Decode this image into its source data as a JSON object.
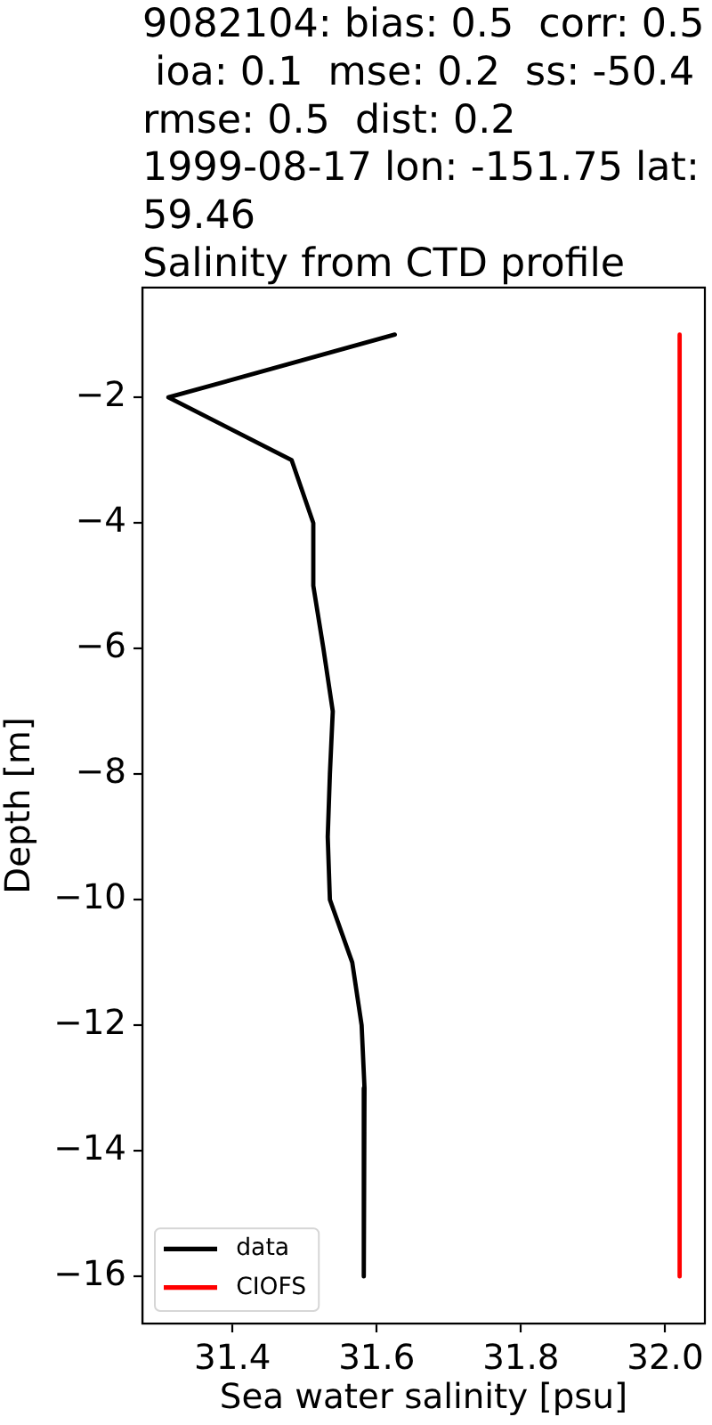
{
  "chart_data": {
    "type": "line",
    "title": "9082104: bias: 0.5  corr: 0.5\n ioa: 0.1  mse: 0.2  ss: -50.4\nrmse: 0.5  dist: 0.2\n1999-08-17 lon: -151.75 lat:\n59.46\nSalinity from CTD profile",
    "xlabel": "Sea water salinity [psu]",
    "ylabel": "Depth [m]",
    "series": [
      {
        "name": "data",
        "color": "#000000",
        "x": [
          31.625,
          31.311,
          31.482,
          31.512,
          31.512,
          31.526,
          31.539,
          31.535,
          31.532,
          31.535,
          31.566,
          31.579,
          31.583,
          31.582
        ],
        "values": [
          -1,
          -2,
          -3,
          -4,
          -5,
          -6,
          -7,
          -8,
          -9,
          -10,
          -11,
          -12,
          -13,
          -16
        ]
      },
      {
        "name": "CIOFS",
        "color": "#ff0000",
        "x": [
          32.02,
          32.02
        ],
        "values": [
          -1,
          -16
        ]
      }
    ],
    "xlim": [
      31.275,
      32.055
    ],
    "ylim": [
      -16.75,
      -0.25
    ],
    "xticks": [
      31.4,
      31.6,
      31.8,
      {
        "value": 32,
        "label": "32.0"
      }
    ],
    "yticks": [
      {
        "value": -16,
        "label": "−16"
      },
      {
        "value": -14,
        "label": "−14"
      },
      {
        "value": -12,
        "label": "−12"
      },
      {
        "value": -10,
        "label": "−10"
      },
      {
        "value": -8,
        "label": "−8"
      },
      {
        "value": -6,
        "label": "−6"
      },
      {
        "value": -4,
        "label": "−4"
      },
      {
        "value": -2,
        "label": "−2"
      }
    ],
    "legend": "bottom left"
  }
}
